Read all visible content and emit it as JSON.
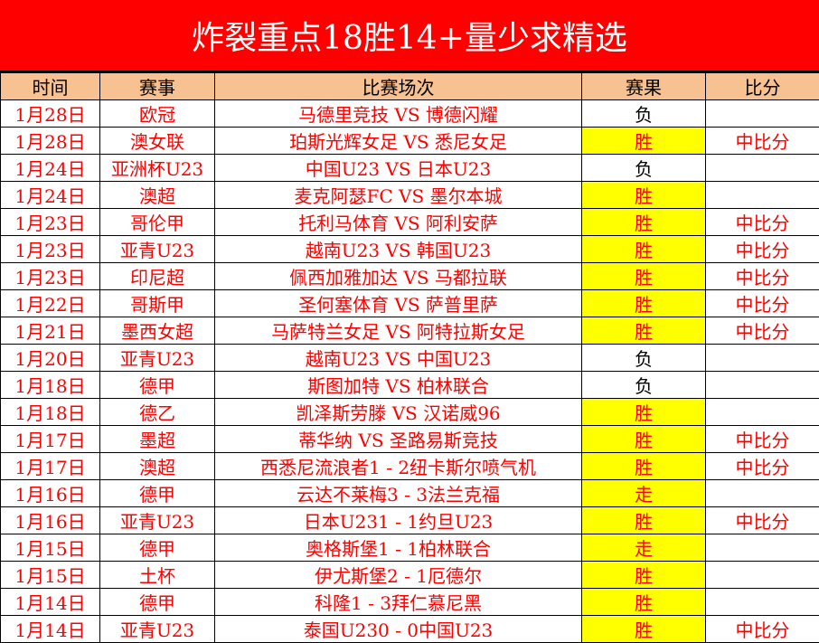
{
  "title": "炸裂重点18胜14+量少求精选",
  "headers": [
    "时间",
    "赛事",
    "比赛场次",
    "赛果",
    "比分"
  ],
  "colors": {
    "title_bg": "#ff0000",
    "header_bg": "#f8c192",
    "highlight": "#ffff00",
    "text": "#ff0000"
  },
  "rows": [
    {
      "date": "1月28日",
      "league": "欧冠",
      "match": "马德里竞技 VS 博德闪耀",
      "result": "负",
      "score": ""
    },
    {
      "date": "1月28日",
      "league": "澳女联",
      "match": "珀斯光辉女足 VS 悉尼女足",
      "result": "胜",
      "score": "中比分"
    },
    {
      "date": "1月24日",
      "league": "亚洲杯U23",
      "match": "中国U23 VS 日本U23",
      "result": "负",
      "score": ""
    },
    {
      "date": "1月24日",
      "league": "澳超",
      "match": "麦克阿瑟FC VS 墨尔本城",
      "result": "胜",
      "score": ""
    },
    {
      "date": "1月23日",
      "league": "哥伦甲",
      "match": "托利马体育 VS 阿利安萨",
      "result": "胜",
      "score": "中比分"
    },
    {
      "date": "1月23日",
      "league": "亚青U23",
      "match": "越南U23 VS 韩国U23",
      "result": "胜",
      "score": "中比分"
    },
    {
      "date": "1月23日",
      "league": "印尼超",
      "match": "佩西加雅加达 VS 马都拉联",
      "result": "胜",
      "score": "中比分"
    },
    {
      "date": "1月22日",
      "league": "哥斯甲",
      "match": "圣何塞体育 VS 萨普里萨",
      "result": "胜",
      "score": "中比分"
    },
    {
      "date": "1月21日",
      "league": "墨西女超",
      "match": "马萨特兰女足 VS 阿特拉斯女足",
      "result": "胜",
      "score": "中比分"
    },
    {
      "date": "1月20日",
      "league": "亚青U23",
      "match": "越南U23 VS 中国U23",
      "result": "负",
      "score": ""
    },
    {
      "date": "1月18日",
      "league": "德甲",
      "match": "斯图加特 VS 柏林联合",
      "result": "负",
      "score": ""
    },
    {
      "date": "1月18日",
      "league": "德乙",
      "match": "凯泽斯劳滕 VS 汉诺威96",
      "result": "胜",
      "score": ""
    },
    {
      "date": "1月17日",
      "league": "墨超",
      "match": "蒂华纳 VS 圣路易斯竞技",
      "result": "胜",
      "score": "中比分"
    },
    {
      "date": "1月17日",
      "league": "澳超",
      "match": "西悉尼流浪者1 - 2纽卡斯尔喷气机",
      "result": "胜",
      "score": "中比分"
    },
    {
      "date": "1月16日",
      "league": "德甲",
      "match": "云达不莱梅3 - 3法兰克福",
      "result": "走",
      "score": ""
    },
    {
      "date": "1月16日",
      "league": "亚青U23",
      "match": "日本U231 - 1约旦U23",
      "result": "胜",
      "score": "中比分"
    },
    {
      "date": "1月15日",
      "league": "德甲",
      "match": "奥格斯堡1 - 1柏林联合",
      "result": "走",
      "score": ""
    },
    {
      "date": "1月15日",
      "league": "土杯",
      "match": "伊尤斯堡2 - 1厄德尔",
      "result": "胜",
      "score": ""
    },
    {
      "date": "1月14日",
      "league": "德甲",
      "match": "科隆1 - 3拜仁慕尼黑",
      "result": "胜",
      "score": ""
    },
    {
      "date": "1月14日",
      "league": "亚青U23",
      "match": "泰国U230 - 0中国U23",
      "result": "胜",
      "score": "中比分"
    }
  ]
}
